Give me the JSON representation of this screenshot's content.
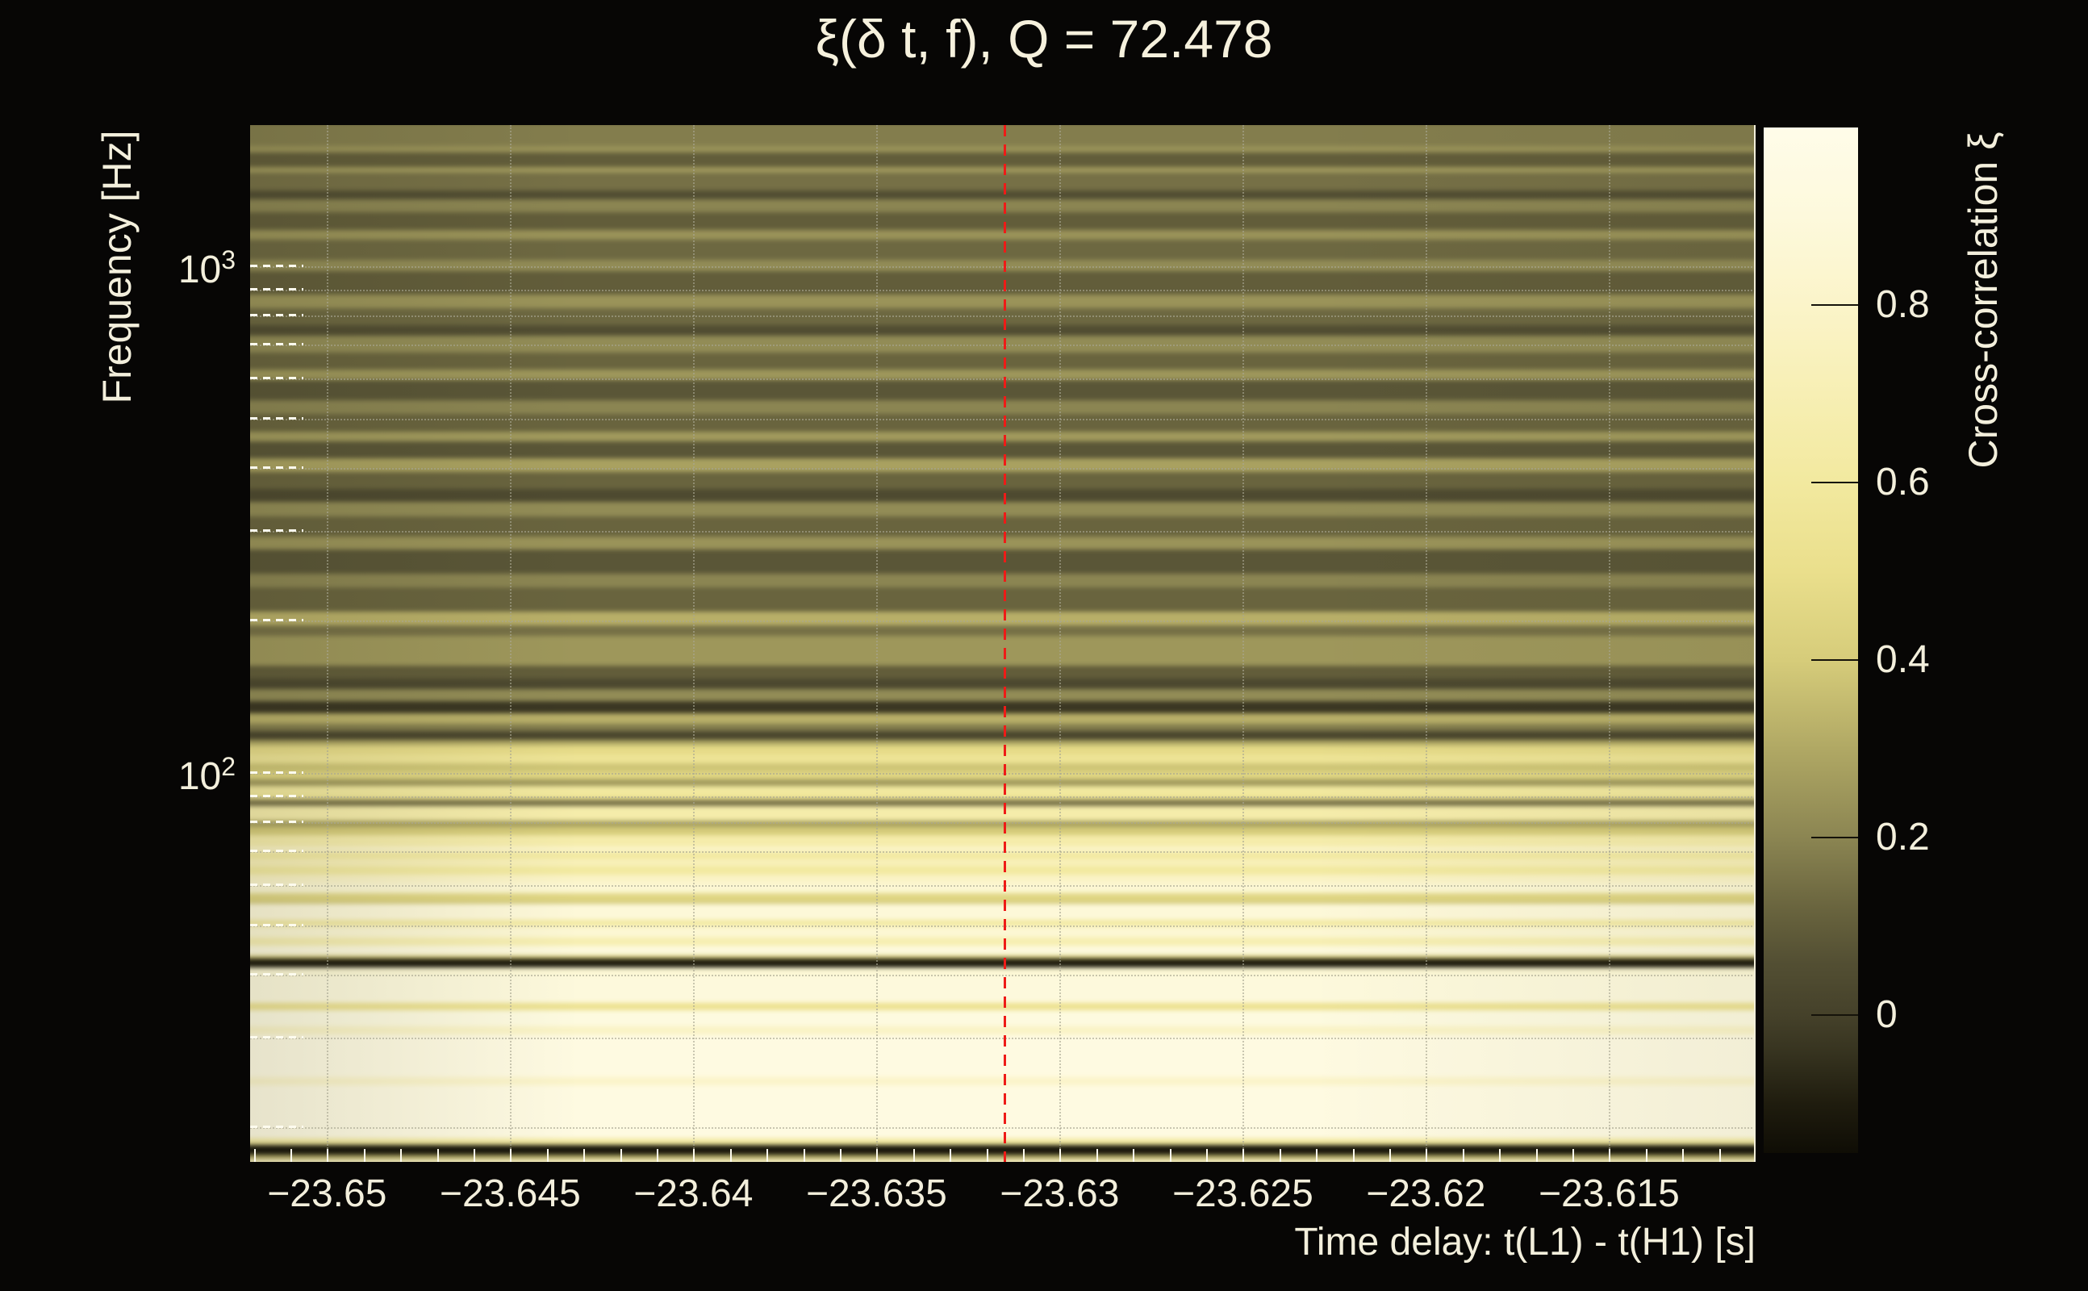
{
  "figure": {
    "title": "ξ(δ t, f), Q = 72.478",
    "background_color": "#070605",
    "text_color": "#f3efdc",
    "marker_color": "#ee1b17"
  },
  "chart_data": {
    "type": "heatmap",
    "title": "ξ(δ t, f), Q = 72.478",
    "q_value": 72.478,
    "xlabel": "Time delay: t(L1) - t(H1) [s]",
    "ylabel": "Frequency [Hz]",
    "x_range": [
      -23.6521,
      -23.611
    ],
    "x_major_ticks": [
      -23.65,
      -23.645,
      -23.64,
      -23.635,
      -23.63,
      -23.625,
      -23.62,
      -23.615
    ],
    "x_tick_labels": [
      "−23.65",
      "−23.645",
      "−23.64",
      "−23.635",
      "−23.63",
      "−23.625",
      "−23.62",
      "−23.615"
    ],
    "x_minor_tick_step": 0.001,
    "y_scale": "log",
    "y_range_hz": [
      17,
      1900
    ],
    "y_tick_labels": [
      {
        "base": "10",
        "exp": "3",
        "value_hz": 1000
      },
      {
        "base": "10",
        "exp": "2",
        "value_hz": 100
      }
    ],
    "y_gridlines_hz": [
      1000,
      900,
      800,
      700,
      600,
      500,
      400,
      300,
      200,
      100,
      90,
      80,
      70,
      60,
      50,
      40,
      30,
      20
    ],
    "grid": true,
    "marker_line": {
      "x": -23.6315,
      "style": "dashed",
      "color": "#ee1b17"
    },
    "colorbar": {
      "label": "Cross-correlation ξ",
      "range": [
        -0.155,
        1.0
      ],
      "ticks": [
        0.8,
        0.6,
        0.4,
        0.2,
        0
      ],
      "tick_labels": [
        "0.8",
        "0.6",
        "0.4",
        "0.2",
        "0"
      ]
    },
    "colormap_stops": [
      [
        -0.155,
        "#0f0d05"
      ],
      [
        -0.1,
        "#1f1c0e"
      ],
      [
        -0.04,
        "#373420"
      ],
      [
        0,
        "#45412a"
      ],
      [
        0.06,
        "#534f33"
      ],
      [
        0.12,
        "#69643e"
      ],
      [
        0.2,
        "#8b8552"
      ],
      [
        0.3,
        "#b0a864"
      ],
      [
        0.4,
        "#d6cc7a"
      ],
      [
        0.5,
        "#eadf8c"
      ],
      [
        0.6,
        "#f2e99f"
      ],
      [
        0.7,
        "#f7efb4"
      ],
      [
        0.8,
        "#fbf4c9"
      ],
      [
        0.9,
        "#fdf9dc"
      ],
      [
        1.0,
        "#fffce9"
      ]
    ],
    "rows_format": "[band_height_px_of_1285_total, cross_correlation_xi], listed from 1900 Hz (top) down to 17 Hz (bottom); xi constant along time-delay axis",
    "rows": [
      [
        5,
        0.02
      ],
      [
        28,
        0.18
      ],
      [
        8,
        0.24
      ],
      [
        18,
        0.1
      ],
      [
        7,
        0.26
      ],
      [
        21,
        0.15
      ],
      [
        11,
        0.05
      ],
      [
        16,
        0.2
      ],
      [
        21,
        0.1
      ],
      [
        12,
        0.24
      ],
      [
        25,
        0.13
      ],
      [
        13,
        0.22
      ],
      [
        29,
        0.1
      ],
      [
        16,
        0.24
      ],
      [
        21,
        0.13
      ],
      [
        13,
        0.05
      ],
      [
        20,
        0.22
      ],
      [
        21,
        0.12
      ],
      [
        13,
        0.25
      ],
      [
        24,
        0.08
      ],
      [
        17,
        0.2
      ],
      [
        21,
        0.12
      ],
      [
        12,
        0.26
      ],
      [
        21,
        0.08
      ],
      [
        16,
        0.28
      ],
      [
        21,
        0.12
      ],
      [
        16,
        0.04
      ],
      [
        17,
        0.22
      ],
      [
        25,
        0.12
      ],
      [
        16,
        0.24
      ],
      [
        29,
        0.08
      ],
      [
        17,
        0.2
      ],
      [
        29,
        0.12
      ],
      [
        17,
        0.32
      ],
      [
        12,
        0.15
      ],
      [
        20,
        0.25
      ],
      [
        17,
        0.25
      ],
      [
        15,
        0.1
      ],
      [
        13,
        0.03
      ],
      [
        15,
        0.22
      ],
      [
        15,
        -0.03
      ],
      [
        12,
        0.32
      ],
      [
        9,
        0.18
      ],
      [
        11,
        0.02
      ],
      [
        7,
        0.3
      ],
      [
        11,
        0.48
      ],
      [
        10,
        0.55
      ],
      [
        10,
        0.38
      ],
      [
        10,
        0.45
      ],
      [
        8,
        0.25
      ],
      [
        11,
        0.6
      ],
      [
        6,
        0.55
      ],
      [
        7,
        0.15
      ],
      [
        18,
        0.65
      ],
      [
        8,
        0.28
      ],
      [
        10,
        0.4
      ],
      [
        13,
        0.65
      ],
      [
        7,
        0.8
      ],
      [
        8,
        0.6
      ],
      [
        10,
        0.72
      ],
      [
        10,
        0.6
      ],
      [
        10,
        0.78
      ],
      [
        12,
        0.85
      ],
      [
        10,
        0.45
      ],
      [
        3,
        0.38
      ],
      [
        20,
        0.88
      ],
      [
        7,
        0.62
      ],
      [
        14,
        0.85
      ],
      [
        10,
        0.68
      ],
      [
        12,
        0.9
      ],
      [
        4,
        0.4
      ],
      [
        10,
        -0.1
      ],
      [
        10,
        0.85
      ],
      [
        34,
        0.9
      ],
      [
        8,
        0.52
      ],
      [
        20,
        0.92
      ],
      [
        10,
        0.78
      ],
      [
        52,
        0.94
      ],
      [
        10,
        0.8
      ],
      [
        64,
        0.94
      ],
      [
        8,
        0.6
      ],
      [
        12,
        -0.12
      ],
      [
        6,
        0.3
      ],
      [
        10,
        0.8
      ]
    ],
    "notes": "Cross-correlation ξ between L1 and H1 as a function of time delay and frequency. ξ ≈ 0.9–0.95 below ~45 Hz, strong alternating bands ξ ≈ 0.4–0.9 between ~50–200 Hz, low ξ ≈ 0–0.3 above ~300 Hz; narrow notches with ξ < 0 near ~42 Hz and ~18 Hz; red dashed marker at δt = −23.6315 s."
  }
}
